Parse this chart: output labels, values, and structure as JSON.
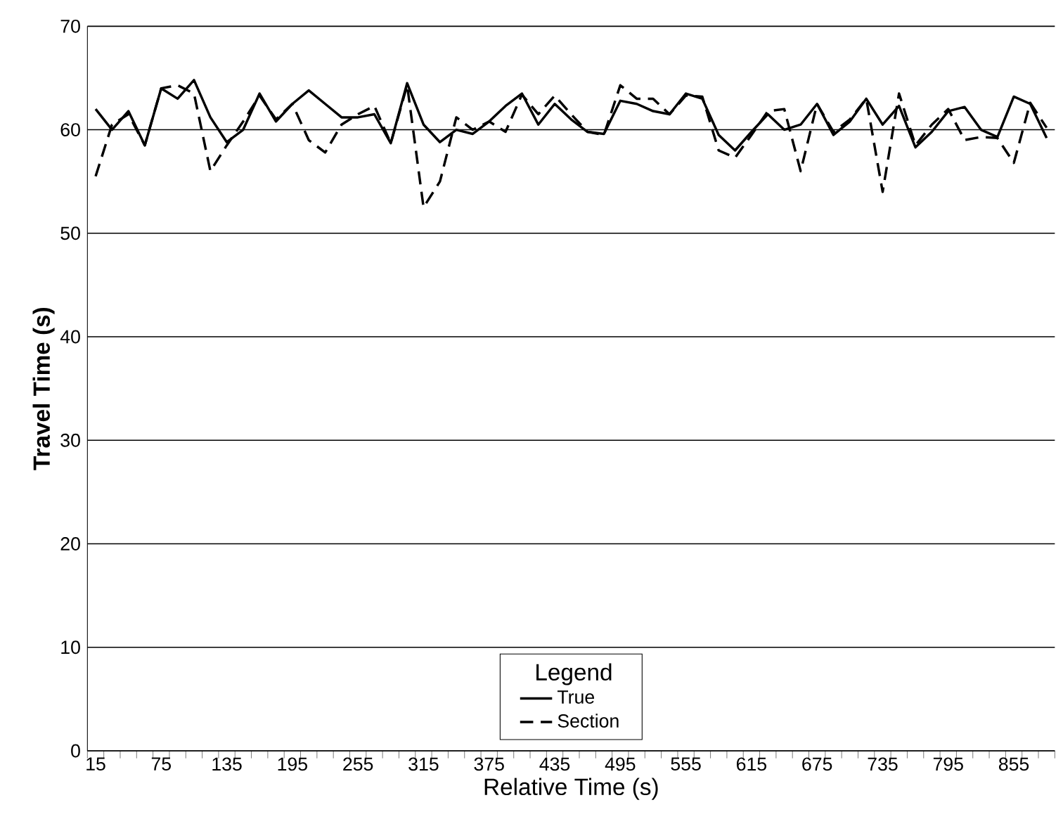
{
  "chart_data": {
    "type": "line",
    "xlabel": "Relative Time (s)",
    "ylabel": "Travel Time (s)",
    "legend_title": "Legend",
    "categories": [
      "15",
      null,
      null,
      null,
      "75",
      null,
      null,
      null,
      "135",
      null,
      null,
      null,
      "195",
      null,
      null,
      null,
      "255",
      null,
      null,
      null,
      "315",
      null,
      null,
      null,
      "375",
      null,
      null,
      null,
      "435",
      null,
      null,
      null,
      "495",
      null,
      null,
      null,
      "555",
      null,
      null,
      null,
      "615",
      null,
      null,
      null,
      "675",
      null,
      null,
      null,
      "735",
      null,
      null,
      null,
      "795",
      null,
      null,
      null,
      "855",
      null,
      null
    ],
    "series": [
      {
        "name": "True",
        "color": "#000000",
        "line_style": "solid",
        "values": [
          62,
          60,
          61.8,
          58.5,
          64,
          63,
          64.8,
          61.2,
          58.8,
          60,
          63.5,
          60.8,
          62.5,
          63.8,
          62.5,
          61.2,
          61.2,
          61.5,
          58.7,
          64.5,
          60.5,
          58.8,
          60,
          59.6,
          60.8,
          62.3,
          63.5,
          60.5,
          62.5,
          61,
          59.8,
          59.6,
          62.8,
          62.5,
          61.8,
          61.5,
          63.5,
          63,
          59.5,
          58,
          59.8,
          61.5,
          60,
          60.5,
          62.5,
          59.5,
          60.8,
          63,
          60.5,
          62.3,
          58.3,
          59.8,
          61.8,
          62.2,
          60,
          59.3,
          63.2,
          62.5,
          59.2
        ]
      },
      {
        "name": "Section",
        "color": "#000000",
        "line_style": "dashed",
        "values": [
          55.5,
          60.5,
          61.5,
          58.5,
          64,
          64.3,
          63.5,
          56,
          58.5,
          60.8,
          63.3,
          61,
          62.5,
          59,
          57.8,
          60.5,
          61.5,
          62.3,
          58.7,
          64.3,
          52.5,
          55,
          61.2,
          60,
          60.8,
          59.8,
          63.4,
          61.5,
          63.3,
          61.5,
          59.8,
          59.5,
          64.3,
          63,
          63,
          61.5,
          63.3,
          63.2,
          58,
          57.3,
          59.5,
          61.8,
          62,
          56,
          62.5,
          59.8,
          61,
          63,
          54,
          63.5,
          58.5,
          60.5,
          62,
          59,
          59.3,
          59.2,
          56.8,
          62.6,
          60.2
        ]
      }
    ],
    "ylim": [
      0,
      70
    ],
    "yticks": [
      0,
      10,
      20,
      30,
      40,
      50,
      60,
      70
    ],
    "grid": "y",
    "legend": "bottom",
    "marker": "none"
  }
}
